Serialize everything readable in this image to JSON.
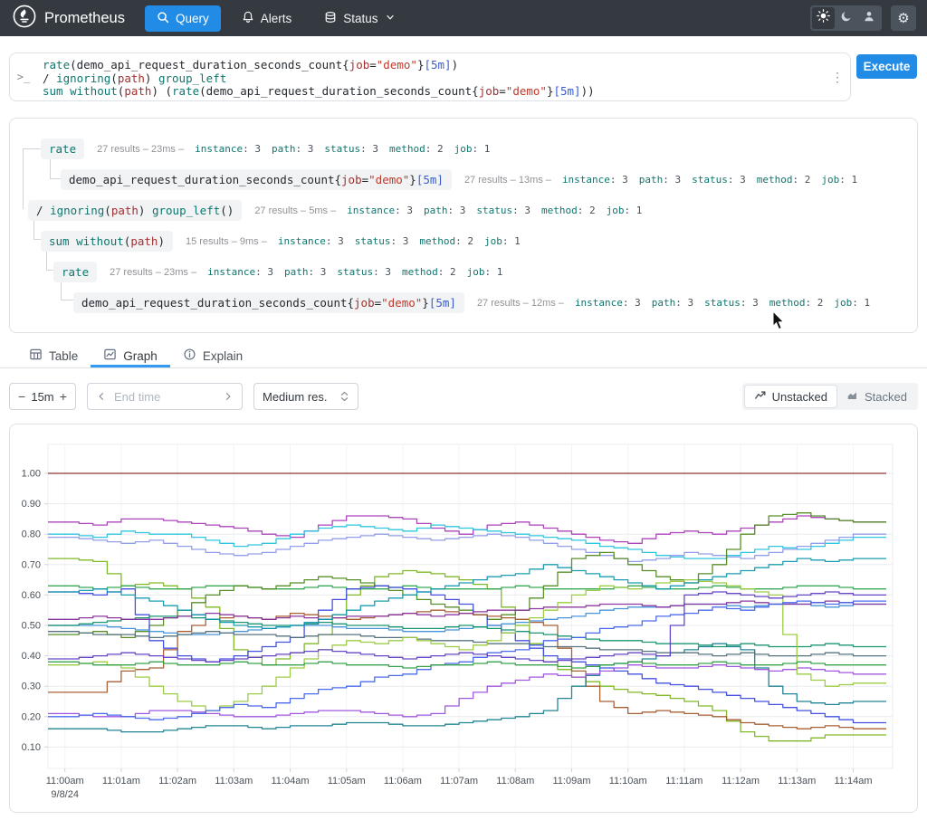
{
  "navbar": {
    "brand": "Prometheus",
    "items": [
      {
        "label": "Query"
      },
      {
        "label": "Alerts"
      },
      {
        "label": "Status"
      }
    ]
  },
  "query_editor": {
    "lines": [
      [
        [
          "fn",
          "rate"
        ],
        [
          "pl",
          "("
        ],
        [
          "pl",
          "demo_api_request_duration_seconds_count"
        ],
        [
          "pl",
          "{"
        ],
        [
          "lbl",
          "job"
        ],
        [
          "pl",
          "="
        ],
        [
          "str",
          "\"demo\""
        ],
        [
          "pl",
          "}"
        ],
        [
          "dur",
          "[5m]"
        ],
        [
          "pl",
          ")"
        ]
      ],
      [
        [
          "pl",
          "/ "
        ],
        [
          "fn",
          "ignoring"
        ],
        [
          "pl",
          "("
        ],
        [
          "lbl",
          "path"
        ],
        [
          "pl",
          ") "
        ],
        [
          "fn",
          "group_left"
        ]
      ],
      [
        [
          "fn",
          "sum"
        ],
        [
          "pl",
          " "
        ],
        [
          "fn",
          "without"
        ],
        [
          "pl",
          "("
        ],
        [
          "lbl",
          "path"
        ],
        [
          "pl",
          ") ("
        ],
        [
          "fn",
          "rate"
        ],
        [
          "pl",
          "("
        ],
        [
          "pl",
          "demo_api_request_duration_seconds_count"
        ],
        [
          "pl",
          "{"
        ],
        [
          "lbl",
          "job"
        ],
        [
          "pl",
          "="
        ],
        [
          "str",
          "\"demo\""
        ],
        [
          "pl",
          "}"
        ],
        [
          "dur",
          "[5m]"
        ],
        [
          "pl",
          "))"
        ]
      ]
    ],
    "prompt": ">_",
    "menu_glyph": "⋮",
    "execute_label": "Execute"
  },
  "tree": {
    "rows": [
      {
        "indent": 34,
        "tokens": [
          [
            "fn",
            "rate"
          ]
        ],
        "results": "27 results",
        "time": "23ms",
        "labels": [
          [
            "instance",
            "3"
          ],
          [
            "path",
            "3"
          ],
          [
            "status",
            "3"
          ],
          [
            "method",
            "2"
          ],
          [
            "job",
            "1"
          ]
        ]
      },
      {
        "indent": 56,
        "tokens": [
          [
            "pl",
            "demo_api_request_duration_seconds_count"
          ],
          [
            "pl",
            "{"
          ],
          [
            "lbl",
            "job"
          ],
          [
            "pl",
            "="
          ],
          [
            "str",
            "\"demo\""
          ],
          [
            "pl",
            "}"
          ],
          [
            "dur",
            "[5m]"
          ]
        ],
        "results": "27 results",
        "time": "13ms",
        "labels": [
          [
            "instance",
            "3"
          ],
          [
            "path",
            "3"
          ],
          [
            "status",
            "3"
          ],
          [
            "method",
            "2"
          ],
          [
            "job",
            "1"
          ]
        ]
      },
      {
        "indent": 20,
        "tokens": [
          [
            "pl",
            "/ "
          ],
          [
            "fn",
            "ignoring"
          ],
          [
            "pl",
            "("
          ],
          [
            "lbl",
            "path"
          ],
          [
            "pl",
            ") "
          ],
          [
            "fn",
            "group_left"
          ],
          [
            "pl",
            "()"
          ]
        ],
        "results": "27 results",
        "time": "5ms",
        "labels": [
          [
            "instance",
            "3"
          ],
          [
            "path",
            "3"
          ],
          [
            "status",
            "3"
          ],
          [
            "method",
            "2"
          ],
          [
            "job",
            "1"
          ]
        ]
      },
      {
        "indent": 34,
        "tokens": [
          [
            "fn",
            "sum without"
          ],
          [
            "pl",
            "("
          ],
          [
            "lbl",
            "path"
          ],
          [
            "pl",
            ")"
          ]
        ],
        "results": "15 results",
        "time": "9ms",
        "labels": [
          [
            "instance",
            "3"
          ],
          [
            "status",
            "3"
          ],
          [
            "method",
            "2"
          ],
          [
            "job",
            "1"
          ]
        ]
      },
      {
        "indent": 48,
        "tokens": [
          [
            "fn",
            "rate"
          ]
        ],
        "results": "27 results",
        "time": "23ms",
        "labels": [
          [
            "instance",
            "3"
          ],
          [
            "path",
            "3"
          ],
          [
            "status",
            "3"
          ],
          [
            "method",
            "2"
          ],
          [
            "job",
            "1"
          ]
        ]
      },
      {
        "indent": 70,
        "tokens": [
          [
            "pl",
            "demo_api_request_duration_seconds_count"
          ],
          [
            "pl",
            "{"
          ],
          [
            "lbl",
            "job"
          ],
          [
            "pl",
            "="
          ],
          [
            "str",
            "\"demo\""
          ],
          [
            "pl",
            "}"
          ],
          [
            "dur",
            "[5m]"
          ]
        ],
        "results": "27 results",
        "time": "12ms",
        "labels": [
          [
            "instance",
            "3"
          ],
          [
            "path",
            "3"
          ],
          [
            "status",
            "3"
          ],
          [
            "method",
            "2"
          ],
          [
            "job",
            "1"
          ]
        ]
      }
    ]
  },
  "tabs": [
    {
      "label": "Table"
    },
    {
      "label": "Graph"
    },
    {
      "label": "Explain"
    }
  ],
  "controls": {
    "minus": "−",
    "plus": "+",
    "range": "15m",
    "end_time_placeholder": "End time",
    "resolution": "Medium res.",
    "unstacked": "Unstacked",
    "stacked": "Stacked"
  },
  "colors": {
    "accent_blue": "#228be6",
    "navbar_bg": "#343a40",
    "card_border": "#dee2e6"
  },
  "chart_data": {
    "type": "line",
    "x_ticks": [
      "11:00am",
      "11:01am",
      "11:02am",
      "11:03am",
      "11:04am",
      "11:05am",
      "11:06am",
      "11:07am",
      "11:08am",
      "11:09am",
      "11:10am",
      "11:11am",
      "11:12am",
      "11:13am",
      "11:14am"
    ],
    "x_date_label": "9/8/24",
    "y_ticks": [
      "0.10",
      "0.20",
      "0.30",
      "0.40",
      "0.50",
      "0.60",
      "0.70",
      "0.80",
      "0.90",
      "1.00"
    ],
    "ylim": [
      0.03,
      1.095
    ],
    "grid": true,
    "legend": false,
    "points_interval_seconds": 30,
    "series": [
      {
        "color": "#8a2a2a",
        "values": [
          1,
          1,
          1,
          1,
          1,
          1,
          1,
          1,
          1,
          1,
          1,
          1,
          1,
          1,
          1,
          1,
          1,
          1,
          1,
          1,
          1,
          1,
          1,
          1,
          1,
          1,
          1,
          1,
          1
        ]
      },
      {
        "color": "#a93ab8",
        "values": [
          0.84,
          0.83,
          0.85,
          0.85,
          0.84,
          0.83,
          0.82,
          0.8,
          0.79,
          0.83,
          0.86,
          0.86,
          0.85,
          0.82,
          0.8,
          0.83,
          0.84,
          0.82,
          0.8,
          0.78,
          0.77,
          0.8,
          0.81,
          0.8,
          0.82,
          0.84,
          0.86,
          0.85,
          0.84
        ]
      },
      {
        "color": "#25c3dd",
        "values": [
          0.8,
          0.79,
          0.81,
          0.8,
          0.8,
          0.78,
          0.76,
          0.77,
          0.8,
          0.82,
          0.83,
          0.82,
          0.81,
          0.83,
          0.82,
          0.81,
          0.8,
          0.79,
          0.78,
          0.76,
          0.75,
          0.73,
          0.72,
          0.72,
          0.74,
          0.76,
          0.75,
          0.77,
          0.79
        ]
      },
      {
        "color": "#8e9ae8",
        "values": [
          0.79,
          0.78,
          0.77,
          0.78,
          0.76,
          0.74,
          0.73,
          0.74,
          0.76,
          0.78,
          0.79,
          0.8,
          0.79,
          0.78,
          0.79,
          0.8,
          0.79,
          0.77,
          0.75,
          0.73,
          0.71,
          0.72,
          0.74,
          0.73,
          0.72,
          0.74,
          0.76,
          0.78,
          0.8
        ]
      },
      {
        "color": "#7ab51d",
        "values": [
          0.72,
          0.71,
          0.63,
          0.64,
          0.62,
          0.56,
          0.42,
          0.37,
          0.41,
          0.47,
          0.6,
          0.66,
          0.68,
          0.67,
          0.65,
          0.62,
          0.5,
          0.38,
          0.33,
          0.3,
          0.28,
          0.27,
          0.25,
          0.22,
          0.15,
          0.12,
          0.12,
          0.14,
          0.14
        ]
      },
      {
        "color": "#2da44e",
        "values": [
          0.63,
          0.62,
          0.63,
          0.62,
          0.62,
          0.63,
          0.63,
          0.62,
          0.62,
          0.63,
          0.62,
          0.62,
          0.63,
          0.62,
          0.62,
          0.62,
          0.63,
          0.62,
          0.62,
          0.62,
          0.63,
          0.62,
          0.62,
          0.63,
          0.62,
          0.62,
          0.63,
          0.63,
          0.62
        ]
      },
      {
        "color": "#4e8a1e",
        "values": [
          0.47,
          0.48,
          0.46,
          0.5,
          0.55,
          0.6,
          0.63,
          0.62,
          0.64,
          0.66,
          0.65,
          0.63,
          0.6,
          0.57,
          0.55,
          0.52,
          0.55,
          0.63,
          0.72,
          0.74,
          0.7,
          0.66,
          0.64,
          0.7,
          0.8,
          0.86,
          0.87,
          0.85,
          0.84
        ]
      },
      {
        "color": "#3b49df",
        "values": [
          0.61,
          0.6,
          0.62,
          0.45,
          0.4,
          0.38,
          0.4,
          0.43,
          0.46,
          0.55,
          0.62,
          0.63,
          0.62,
          0.6,
          0.57,
          0.5,
          0.45,
          0.4,
          0.38,
          0.36,
          0.34,
          0.31,
          0.3,
          0.28,
          0.26,
          0.24,
          0.22,
          0.2,
          0.18
        ]
      },
      {
        "color": "#a3572a",
        "values": [
          0.28,
          0.28,
          0.35,
          0.36,
          0.48,
          0.52,
          0.53,
          0.52,
          0.54,
          0.53,
          0.52,
          0.53,
          0.54,
          0.55,
          0.54,
          0.53,
          0.52,
          0.5,
          0.35,
          0.25,
          0.21,
          0.22,
          0.21,
          0.2,
          0.18,
          0.17,
          0.16,
          0.17,
          0.16
        ]
      },
      {
        "color": "#177f8f",
        "values": [
          0.16,
          0.16,
          0.15,
          0.15,
          0.16,
          0.17,
          0.17,
          0.16,
          0.17,
          0.17,
          0.18,
          0.18,
          0.17,
          0.17,
          0.18,
          0.19,
          0.2,
          0.22,
          0.3,
          0.37,
          0.38,
          0.4,
          0.42,
          0.44,
          0.42,
          0.3,
          0.25,
          0.24,
          0.25
        ]
      },
      {
        "color": "#9d4edd",
        "values": [
          0.21,
          0.2,
          0.2,
          0.22,
          0.22,
          0.21,
          0.2,
          0.2,
          0.21,
          0.22,
          0.22,
          0.21,
          0.2,
          0.21,
          0.26,
          0.3,
          0.32,
          0.34,
          0.33,
          0.35,
          0.37,
          0.36,
          0.36,
          0.37,
          0.36,
          0.35,
          0.36,
          0.35,
          0.34
        ]
      },
      {
        "color": "#3f8fd8",
        "values": [
          0.5,
          0.5,
          0.49,
          0.48,
          0.47,
          0.47,
          0.48,
          0.49,
          0.5,
          0.5,
          0.49,
          0.49,
          0.48,
          0.48,
          0.49,
          0.5,
          0.51,
          0.52,
          0.53,
          0.55,
          0.56,
          0.56,
          0.57,
          0.57,
          0.56,
          0.57,
          0.57,
          0.56,
          0.57
        ]
      },
      {
        "color": "#0f8f6a",
        "values": [
          0.5,
          0.51,
          0.52,
          0.53,
          0.53,
          0.52,
          0.51,
          0.5,
          0.5,
          0.51,
          0.5,
          0.5,
          0.49,
          0.49,
          0.5,
          0.49,
          0.48,
          0.47,
          0.46,
          0.45,
          0.45,
          0.44,
          0.44,
          0.43,
          0.44,
          0.43,
          0.43,
          0.44,
          0.43
        ]
      },
      {
        "color": "#862e9c",
        "values": [
          0.52,
          0.53,
          0.52,
          0.52,
          0.53,
          0.54,
          0.53,
          0.52,
          0.53,
          0.52,
          0.53,
          0.53,
          0.54,
          0.53,
          0.54,
          0.55,
          0.55,
          0.56,
          0.56,
          0.57,
          0.57,
          0.56,
          0.57,
          0.57,
          0.58,
          0.57,
          0.57,
          0.58,
          0.57
        ]
      },
      {
        "color": "#4f6d7a",
        "values": [
          0.48,
          0.47,
          0.47,
          0.46,
          0.47,
          0.48,
          0.47,
          0.47,
          0.46,
          0.47,
          0.47,
          0.46,
          0.46,
          0.45,
          0.45,
          0.44,
          0.44,
          0.43,
          0.43,
          0.42,
          0.42,
          0.41,
          0.41,
          0.4,
          0.41,
          0.4,
          0.4,
          0.41,
          0.4
        ]
      },
      {
        "color": "#98c93c",
        "values": [
          0.37,
          0.38,
          0.36,
          0.3,
          0.25,
          0.22,
          0.25,
          0.3,
          0.36,
          0.42,
          0.45,
          0.44,
          0.46,
          0.44,
          0.42,
          0.45,
          0.5,
          0.55,
          0.6,
          0.63,
          0.62,
          0.64,
          0.65,
          0.64,
          0.62,
          0.6,
          0.34,
          0.3,
          0.31
        ]
      },
      {
        "color": "#4263eb",
        "values": [
          0.2,
          0.21,
          0.2,
          0.19,
          0.2,
          0.22,
          0.24,
          0.23,
          0.26,
          0.29,
          0.3,
          0.33,
          0.34,
          0.37,
          0.38,
          0.41,
          0.42,
          0.45,
          0.46,
          0.49,
          0.5,
          0.53,
          0.54,
          0.56,
          0.55,
          0.57,
          0.58,
          0.57,
          0.58
        ]
      },
      {
        "color": "#2f9e44",
        "values": [
          0.38,
          0.37,
          0.37,
          0.38,
          0.37,
          0.37,
          0.38,
          0.37,
          0.37,
          0.38,
          0.37,
          0.37,
          0.36,
          0.37,
          0.37,
          0.38,
          0.37,
          0.37,
          0.36,
          0.37,
          0.38,
          0.37,
          0.37,
          0.38,
          0.37,
          0.37,
          0.38,
          0.37,
          0.37
        ]
      },
      {
        "color": "#1098ad",
        "values": [
          0.61,
          0.62,
          0.6,
          0.58,
          0.55,
          0.52,
          0.5,
          0.49,
          0.5,
          0.52,
          0.55,
          0.58,
          0.6,
          0.62,
          0.64,
          0.66,
          0.67,
          0.7,
          0.68,
          0.66,
          0.64,
          0.62,
          0.64,
          0.66,
          0.68,
          0.7,
          0.72,
          0.71,
          0.72
        ]
      },
      {
        "color": "#5f3dc4",
        "values": [
          0.39,
          0.4,
          0.41,
          0.4,
          0.39,
          0.38,
          0.39,
          0.4,
          0.41,
          0.42,
          0.41,
          0.4,
          0.39,
          0.4,
          0.41,
          0.4,
          0.39,
          0.38,
          0.39,
          0.4,
          0.41,
          0.4,
          0.6,
          0.61,
          0.6,
          0.59,
          0.6,
          0.61,
          0.6
        ]
      }
    ]
  }
}
